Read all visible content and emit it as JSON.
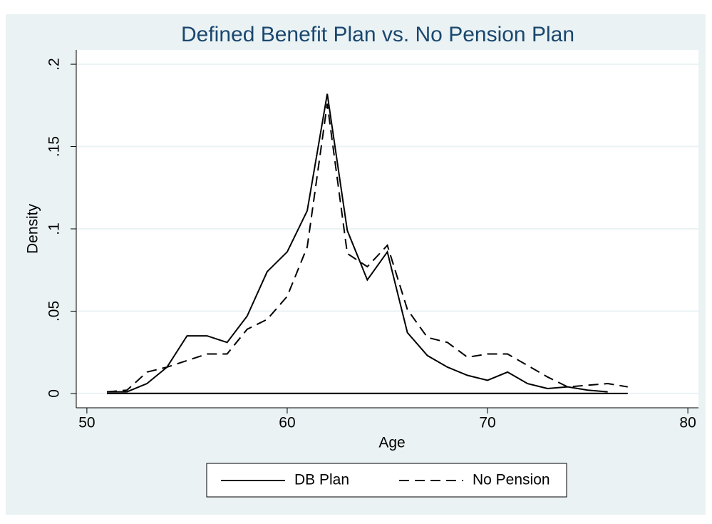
{
  "chart_data": {
    "type": "line",
    "title": "Defined Benefit Plan vs. No Pension Plan",
    "xlabel": "Age",
    "ylabel": "Density",
    "xlim": [
      49.47,
      80.53
    ],
    "xticks": [
      50,
      60,
      70,
      80
    ],
    "ylim": [
      -0.0087,
      0.2087
    ],
    "yticks": [
      0,
      {
        "value": 0.05,
        "label": ".05"
      },
      {
        "value": 0.1,
        "label": ".1"
      },
      {
        "value": 0.15,
        "label": ".15"
      },
      {
        "value": 0.2,
        "label": ".2"
      }
    ],
    "grid": true,
    "legend": "bottom",
    "series": [
      {
        "name": "DB Plan",
        "color": "#000000",
        "dash": "solid",
        "x": [
          51,
          52,
          53,
          54,
          55,
          56,
          57,
          58,
          59,
          60,
          61,
          62,
          63,
          64,
          65,
          66,
          67,
          68,
          69,
          70,
          71,
          72,
          73,
          74,
          75,
          76
        ],
        "values": [
          0.001,
          0.001,
          0.006,
          0.016,
          0.035,
          0.035,
          0.031,
          0.047,
          0.074,
          0.086,
          0.111,
          0.182,
          0.099,
          0.069,
          0.086,
          0.037,
          0.023,
          0.016,
          0.011,
          0.008,
          0.013,
          0.006,
          0.003,
          0.004,
          0.002,
          0.001
        ]
      },
      {
        "name": "No Pension",
        "color": "#000000",
        "dash": "dashed",
        "x": [
          51,
          52,
          53,
          54,
          55,
          56,
          57,
          58,
          59,
          60,
          61,
          62,
          63,
          64,
          65,
          66,
          67,
          68,
          69,
          70,
          71,
          72,
          73,
          74,
          75,
          76,
          77
        ],
        "values": [
          0.001,
          0.002,
          0.013,
          0.016,
          0.02,
          0.024,
          0.024,
          0.039,
          0.045,
          0.059,
          0.089,
          0.176,
          0.085,
          0.077,
          0.09,
          0.051,
          0.034,
          0.031,
          0.022,
          0.024,
          0.024,
          0.017,
          0.01,
          0.004,
          0.005,
          0.006,
          0.004
        ]
      }
    ]
  }
}
